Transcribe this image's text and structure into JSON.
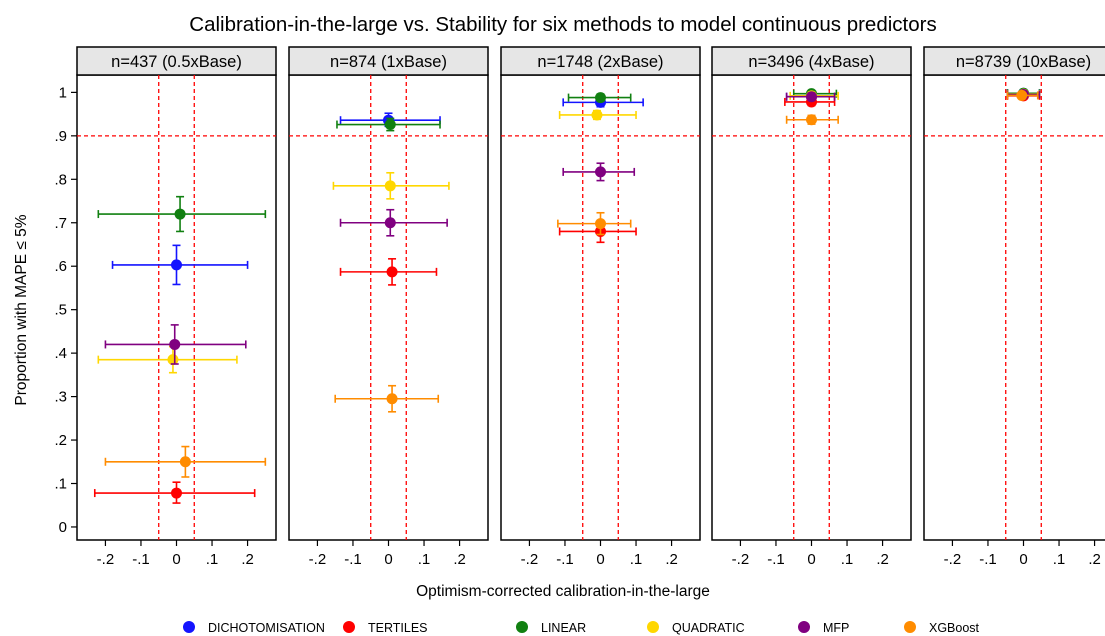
{
  "chart_data": {
    "type": "scatter",
    "title": "Calibration-in-the-large vs. Stability for six methods to model continuous predictors",
    "xlabel": "Optimism-corrected calibration-in-the-large",
    "ylabel": "Proportion with MAPE ≤ 5%",
    "xlim": [
      -0.28,
      0.28
    ],
    "ylim": [
      -0.03,
      1.04
    ],
    "x_ticks": [
      -0.2,
      -0.1,
      0,
      0.1,
      0.2
    ],
    "x_tick_labels": [
      "-.2",
      "-.1",
      "0",
      ".1",
      ".2"
    ],
    "y_ticks": [
      0,
      0.1,
      0.2,
      0.3,
      0.4,
      0.5,
      0.6,
      0.7,
      0.8,
      0.9,
      1
    ],
    "y_tick_labels": [
      "0",
      ".1",
      ".2",
      ".3",
      ".4",
      ".5",
      ".6",
      ".7",
      ".8",
      ".9",
      "1"
    ],
    "reference_lines": {
      "x": [
        -0.05,
        0.05
      ],
      "y": [
        0.9
      ]
    },
    "legend_placement": "bottom",
    "colors": {
      "DICHOTOMISATION": "#1414ff",
      "TERTILES": "#ff0000",
      "LINEAR": "#118011",
      "QUADRATIC": "#ffd700",
      "MFP": "#800080",
      "XGBoost": "#ff8c00",
      "reference": "#ff0000"
    },
    "series": [
      {
        "name": "DICHOTOMISATION"
      },
      {
        "name": "TERTILES"
      },
      {
        "name": "LINEAR"
      },
      {
        "name": "QUADRATIC"
      },
      {
        "name": "MFP"
      },
      {
        "name": "XGBoost"
      }
    ],
    "panels": [
      {
        "label": "n=437 (0.5xBase)",
        "points": [
          {
            "series": "DICHOTOMISATION",
            "x": 0.0,
            "xlo": -0.18,
            "xhi": 0.2,
            "y": 0.603,
            "ylo": 0.558,
            "yhi": 0.648
          },
          {
            "series": "TERTILES",
            "x": 0.0,
            "xlo": -0.23,
            "xhi": 0.22,
            "y": 0.078,
            "ylo": 0.055,
            "yhi": 0.103
          },
          {
            "series": "LINEAR",
            "x": 0.01,
            "xlo": -0.22,
            "xhi": 0.25,
            "y": 0.72,
            "ylo": 0.68,
            "yhi": 0.76
          },
          {
            "series": "QUADRATIC",
            "x": -0.01,
            "xlo": -0.22,
            "xhi": 0.17,
            "y": 0.385,
            "ylo": 0.355,
            "yhi": 0.415
          },
          {
            "series": "MFP",
            "x": -0.005,
            "xlo": -0.2,
            "xhi": 0.195,
            "y": 0.42,
            "ylo": 0.375,
            "yhi": 0.465
          },
          {
            "series": "XGBoost",
            "x": 0.025,
            "xlo": -0.2,
            "xhi": 0.25,
            "y": 0.15,
            "ylo": 0.115,
            "yhi": 0.185
          }
        ]
      },
      {
        "label": "n=874 (1xBase)",
        "points": [
          {
            "series": "DICHOTOMISATION",
            "x": 0.0,
            "xlo": -0.135,
            "xhi": 0.145,
            "y": 0.936,
            "ylo": 0.922,
            "yhi": 0.952
          },
          {
            "series": "TERTILES",
            "x": 0.01,
            "xlo": -0.135,
            "xhi": 0.135,
            "y": 0.587,
            "ylo": 0.557,
            "yhi": 0.617
          },
          {
            "series": "LINEAR",
            "x": 0.005,
            "xlo": -0.145,
            "xhi": 0.145,
            "y": 0.926,
            "ylo": 0.912,
            "yhi": 0.94
          },
          {
            "series": "QUADRATIC",
            "x": 0.005,
            "xlo": -0.155,
            "xhi": 0.17,
            "y": 0.785,
            "ylo": 0.755,
            "yhi": 0.815
          },
          {
            "series": "MFP",
            "x": 0.005,
            "xlo": -0.135,
            "xhi": 0.165,
            "y": 0.7,
            "ylo": 0.67,
            "yhi": 0.73
          },
          {
            "series": "XGBoost",
            "x": 0.01,
            "xlo": -0.15,
            "xhi": 0.14,
            "y": 0.295,
            "ylo": 0.265,
            "yhi": 0.325
          }
        ]
      },
      {
        "label": "n=1748 (2xBase)",
        "points": [
          {
            "series": "DICHOTOMISATION",
            "x": 0.0,
            "xlo": -0.105,
            "xhi": 0.12,
            "y": 0.977,
            "ylo": 0.967,
            "yhi": 0.987
          },
          {
            "series": "TERTILES",
            "x": 0.0,
            "xlo": -0.115,
            "xhi": 0.1,
            "y": 0.68,
            "ylo": 0.655,
            "yhi": 0.705
          },
          {
            "series": "LINEAR",
            "x": 0.0,
            "xlo": -0.09,
            "xhi": 0.085,
            "y": 0.988,
            "ylo": 0.98,
            "yhi": 0.996
          },
          {
            "series": "QUADRATIC",
            "x": -0.01,
            "xlo": -0.115,
            "xhi": 0.1,
            "y": 0.948,
            "ylo": 0.938,
            "yhi": 0.958
          },
          {
            "series": "MFP",
            "x": 0.0,
            "xlo": -0.105,
            "xhi": 0.095,
            "y": 0.817,
            "ylo": 0.797,
            "yhi": 0.837
          },
          {
            "series": "XGBoost",
            "x": 0.0,
            "xlo": -0.12,
            "xhi": 0.085,
            "y": 0.698,
            "ylo": 0.673,
            "yhi": 0.723
          }
        ]
      },
      {
        "label": "n=3496 (4xBase)",
        "points": [
          {
            "series": "DICHOTOMISATION",
            "x": 0.0,
            "xlo": -0.07,
            "xhi": 0.065,
            "y": 0.99,
            "ylo": 0.982,
            "yhi": 0.998
          },
          {
            "series": "TERTILES",
            "x": 0.0,
            "xlo": -0.075,
            "xhi": 0.065,
            "y": 0.978,
            "ylo": 0.97,
            "yhi": 0.986
          },
          {
            "series": "LINEAR",
            "x": 0.0,
            "xlo": -0.05,
            "xhi": 0.07,
            "y": 0.997,
            "ylo": 0.991,
            "yhi": 1.003
          },
          {
            "series": "QUADRATIC",
            "x": 0.0,
            "xlo": -0.06,
            "xhi": 0.075,
            "y": 0.992,
            "ylo": 0.984,
            "yhi": 1.0
          },
          {
            "series": "MFP",
            "x": 0.0,
            "xlo": -0.07,
            "xhi": 0.065,
            "y": 0.99,
            "ylo": 0.982,
            "yhi": 0.998
          },
          {
            "series": "XGBoost",
            "x": 0.0,
            "xlo": -0.07,
            "xhi": 0.075,
            "y": 0.937,
            "ylo": 0.927,
            "yhi": 0.947
          }
        ]
      },
      {
        "label": "n=8739 (10xBase)",
        "points": [
          {
            "series": "DICHOTOMISATION",
            "x": 0.0,
            "xlo": -0.045,
            "xhi": 0.045,
            "y": 0.998,
            "ylo": 0.994,
            "yhi": 1.002
          },
          {
            "series": "TERTILES",
            "x": 0.0,
            "xlo": -0.045,
            "xhi": 0.045,
            "y": 0.992,
            "ylo": 0.988,
            "yhi": 0.996
          },
          {
            "series": "LINEAR",
            "x": 0.0,
            "xlo": -0.045,
            "xhi": 0.045,
            "y": 0.998,
            "ylo": 0.994,
            "yhi": 1.002
          },
          {
            "series": "QUADRATIC",
            "x": 0.0,
            "xlo": -0.045,
            "xhi": 0.045,
            "y": 0.996,
            "ylo": 0.992,
            "yhi": 1.0
          },
          {
            "series": "MFP",
            "x": 0.0,
            "xlo": -0.045,
            "xhi": 0.045,
            "y": 0.995,
            "ylo": 0.991,
            "yhi": 0.999
          },
          {
            "series": "XGBoost",
            "x": -0.005,
            "xlo": -0.045,
            "xhi": 0.04,
            "y": 0.993,
            "ylo": 0.989,
            "yhi": 0.997
          }
        ]
      }
    ]
  }
}
